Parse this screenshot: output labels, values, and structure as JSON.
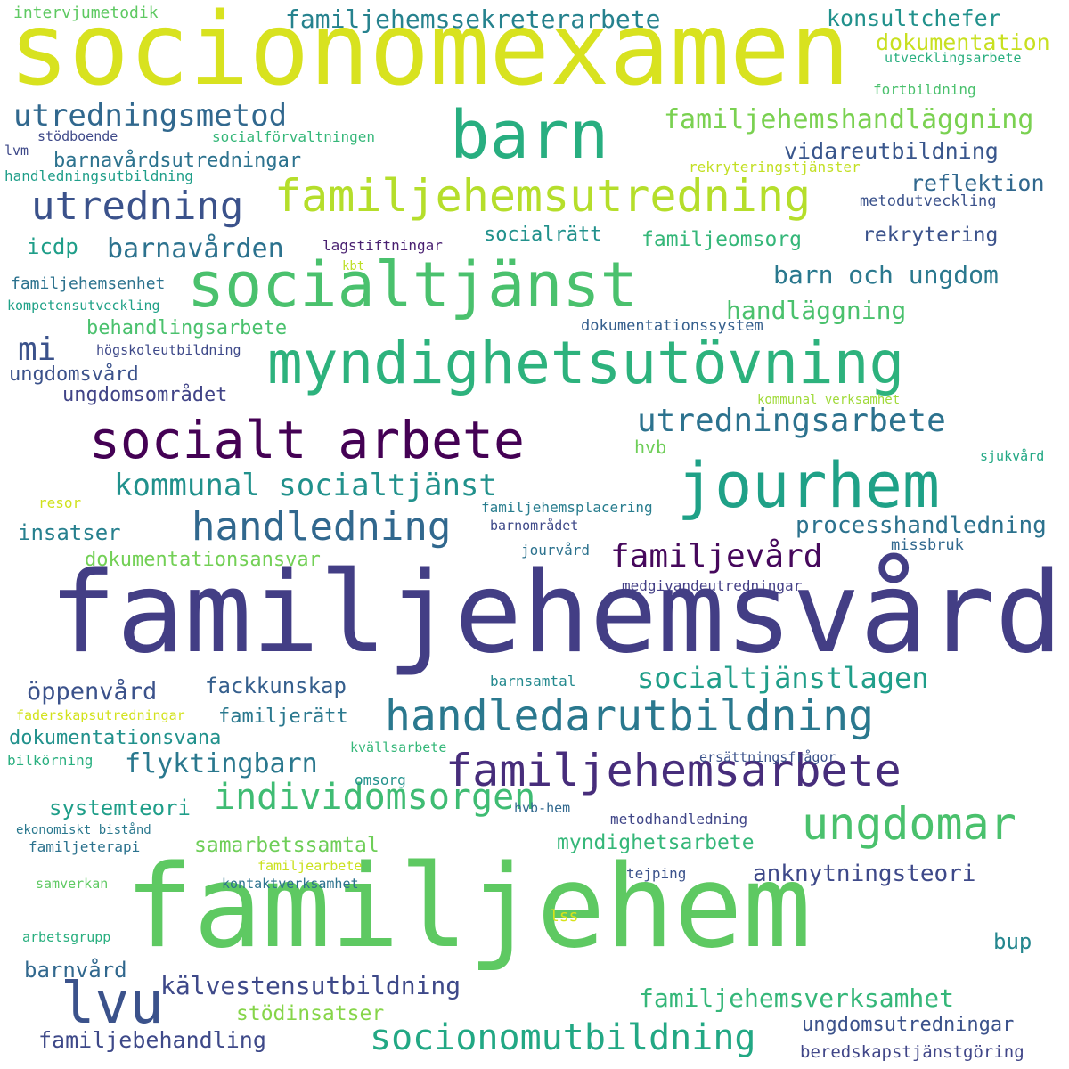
{
  "words": [
    {
      "text": "socionomexamen",
      "color": "#d8e21f"
    },
    {
      "text": "familjehemsvård",
      "color": "#433e85"
    },
    {
      "text": "familjehem",
      "color": "#5ec962"
    },
    {
      "text": "myndighetsutövning",
      "color": "#2db27d"
    },
    {
      "text": "socialtjänst",
      "color": "#4ac16d"
    },
    {
      "text": "barn",
      "color": "#28ae80"
    },
    {
      "text": "socialt arbete",
      "color": "#440154"
    },
    {
      "text": "jourhem",
      "color": "#1fa187"
    },
    {
      "text": "familjehemsutredning",
      "color": "#b5de2b"
    },
    {
      "text": "handledarutbildning",
      "color": "#2a788e"
    },
    {
      "text": "familjehemsarbete",
      "color": "#472d7b"
    },
    {
      "text": "ungdomar",
      "color": "#4ac16d"
    },
    {
      "text": "individomsorgen",
      "color": "#3fbc73"
    },
    {
      "text": "socionomutbildning",
      "color": "#22a884"
    },
    {
      "text": "utredning",
      "color": "#3b528b"
    },
    {
      "text": "handledning",
      "color": "#31688e"
    },
    {
      "text": "utredningsarbete",
      "color": "#2c728e"
    },
    {
      "text": "kommunal socialtjänst",
      "color": "#21918c"
    },
    {
      "text": "familjevård",
      "color": "#46085c"
    },
    {
      "text": "lvu",
      "color": "#3b528b"
    },
    {
      "text": "utredningsmetod",
      "color": "#31688e"
    },
    {
      "text": "familjehemssekreterarbete",
      "color": "#26828e"
    },
    {
      "text": "familjehemshandläggning",
      "color": "#7ad151"
    },
    {
      "text": "socialtjänstlagen",
      "color": "#1f9e89"
    },
    {
      "text": "familjehemsverksamhet",
      "color": "#35b779"
    },
    {
      "text": "kälvestensutbildning",
      "color": "#3e4989"
    },
    {
      "text": "flyktingbarn",
      "color": "#2a788e"
    },
    {
      "text": "barnavården",
      "color": "#2c728e"
    },
    {
      "text": "mi",
      "color": "#3b528b"
    },
    {
      "text": "konsultchefer",
      "color": "#21918c"
    },
    {
      "text": "dokumentation",
      "color": "#c8e020"
    },
    {
      "text": "vidareutbildning",
      "color": "#39568c"
    },
    {
      "text": "reflektion",
      "color": "#31688e"
    },
    {
      "text": "barn och ungdom",
      "color": "#2a788e"
    },
    {
      "text": "handläggning",
      "color": "#4ac16d"
    },
    {
      "text": "processhandledning",
      "color": "#2c728e"
    },
    {
      "text": "anknytningsteori",
      "color": "#3e4989"
    },
    {
      "text": "ungdomsutredningar",
      "color": "#3b528b"
    },
    {
      "text": "familjebehandling",
      "color": "#3e4989"
    },
    {
      "text": "öppenvård",
      "color": "#3b528b"
    },
    {
      "text": "fackkunskap",
      "color": "#355f8d"
    },
    {
      "text": "dokumentationsvana",
      "color": "#21918c"
    },
    {
      "text": "systemteori",
      "color": "#1f9e89"
    },
    {
      "text": "samarbetssamtal",
      "color": "#6ece58"
    },
    {
      "text": "myndighetsarbete",
      "color": "#35b779"
    },
    {
      "text": "stödinsatser",
      "color": "#86d549"
    },
    {
      "text": "barnvård",
      "color": "#31688e"
    },
    {
      "text": "familjerätt",
      "color": "#2a788e"
    },
    {
      "text": "behandlingsarbete",
      "color": "#4ac16d"
    },
    {
      "text": "ungdomsvård",
      "color": "#3b528b"
    },
    {
      "text": "ungdomsområdet",
      "color": "#414487"
    },
    {
      "text": "insatser",
      "color": "#27808e"
    },
    {
      "text": "dokumentationsansvar",
      "color": "#73d056"
    },
    {
      "text": "barnavårdsutredningar",
      "color": "#2c728e"
    },
    {
      "text": "icdp",
      "color": "#1f9e89"
    },
    {
      "text": "socialrätt",
      "color": "#21918c"
    },
    {
      "text": "familjeomsorg",
      "color": "#35b779"
    },
    {
      "text": "rekrytering",
      "color": "#3b528b"
    },
    {
      "text": "bup",
      "color": "#24868e"
    },
    {
      "text": "beredskapstjänstgöring",
      "color": "#404688"
    },
    {
      "text": "hvb",
      "color": "#6ece58"
    },
    {
      "text": "intervjumetodik",
      "color": "#5ec962"
    },
    {
      "text": "utvecklingsarbete",
      "color": "#29af7f"
    },
    {
      "text": "fortbildning",
      "color": "#4ac16d"
    },
    {
      "text": "stödboende",
      "color": "#3e4989"
    },
    {
      "text": "socialförvaltningen",
      "color": "#35b779"
    },
    {
      "text": "lvm",
      "color": "#3e4989"
    },
    {
      "text": "handledningsutbildning",
      "color": "#1f9e89"
    },
    {
      "text": "rekryteringstjänster",
      "color": "#c2df23"
    },
    {
      "text": "metodutveckling",
      "color": "#3b528b"
    },
    {
      "text": "lagstiftningar",
      "color": "#481f70"
    },
    {
      "text": "kbt",
      "color": "#bddf26"
    },
    {
      "text": "familjehemsenhet",
      "color": "#2c728e"
    },
    {
      "text": "kompetensutveckling",
      "color": "#1fa187"
    },
    {
      "text": "dokumentationssystem",
      "color": "#355f8d"
    },
    {
      "text": "högskoleutbildning",
      "color": "#3e4989"
    },
    {
      "text": "kommunal verksamhet",
      "color": "#a0da39"
    },
    {
      "text": "sjukvård",
      "color": "#22a884"
    },
    {
      "text": "resor",
      "color": "#d0e11c"
    },
    {
      "text": "familjehemsplacering",
      "color": "#287d8e"
    },
    {
      "text": "barnområdet",
      "color": "#3e4989"
    },
    {
      "text": "jourvård",
      "color": "#2c728e"
    },
    {
      "text": "missbruk",
      "color": "#31688e"
    },
    {
      "text": "medgivandeutredningar",
      "color": "#433e85"
    },
    {
      "text": "barnsamtal",
      "color": "#23898e"
    },
    {
      "text": "faderskapsutredningar",
      "color": "#d2e21b"
    },
    {
      "text": "kvällsarbete",
      "color": "#35b779"
    },
    {
      "text": "ersättningsfrågor",
      "color": "#3b528b"
    },
    {
      "text": "bilkörning",
      "color": "#29af7f"
    },
    {
      "text": "omsorg",
      "color": "#21918c"
    },
    {
      "text": "hvb-hem",
      "color": "#31688e"
    },
    {
      "text": "metodhandledning",
      "color": "#404688"
    },
    {
      "text": "ekonomiskt bistånd",
      "color": "#2a788e"
    },
    {
      "text": "familjeterapi",
      "color": "#2c728e"
    },
    {
      "text": "familjearbete",
      "color": "#cae11f"
    },
    {
      "text": "tejping",
      "color": "#3b528b"
    },
    {
      "text": "samverkan",
      "color": "#5ec962"
    },
    {
      "text": "kontaktverksamhet",
      "color": "#2c728e"
    },
    {
      "text": "lss",
      "color": "#d8e219"
    },
    {
      "text": "arbetsgrupp",
      "color": "#29af7f"
    }
  ]
}
